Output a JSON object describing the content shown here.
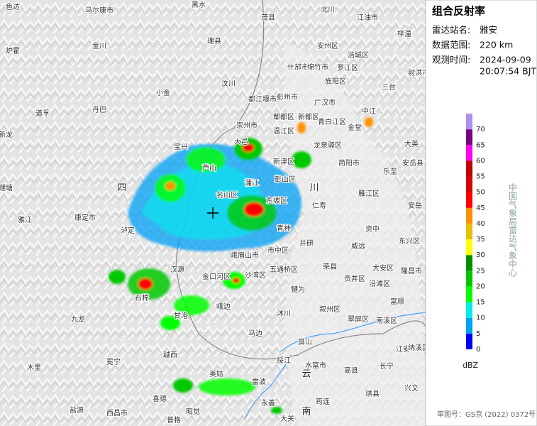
{
  "panel": {
    "title": "组合反射率",
    "station_label": "雷达站名:",
    "station": "雅安",
    "range_label": "数据范围:",
    "range": "220 km",
    "time_label": "观测时间:",
    "date": "2024-09-09",
    "time": "20:07:54 BJT",
    "unit": "dBZ",
    "source": "中国气象局雷达气象中心",
    "approval": "审图号：GS京 (2022) 0372号"
  },
  "legend": {
    "ticks": [
      0,
      5,
      10,
      15,
      20,
      25,
      30,
      35,
      40,
      45,
      50,
      55,
      60,
      65,
      70
    ],
    "clim": [
      0,
      75
    ],
    "colors": [
      "#0000f6",
      "#01a0f6",
      "#00ecec",
      "#01ff00",
      "#00c800",
      "#019000",
      "#ffff00",
      "#e7c000",
      "#ff9000",
      "#ff0000",
      "#d60000",
      "#c00000",
      "#ff00f0",
      "#780084",
      "#ad90f0"
    ]
  },
  "map_labels": [
    "色达",
    "马尔康市",
    "黑水",
    "茂县",
    "北川",
    "江油市",
    "梓潼",
    "炉霍",
    "金川",
    "理县",
    "安州区",
    "涪城区",
    "什邡市",
    "绵竹市",
    "罗江区",
    "旌阳区",
    "射洪市",
    "三台",
    "汶川",
    "小金",
    "丹巴",
    "道孚",
    "新龙",
    "都江堰市",
    "彭州市",
    "广汉市",
    "中江",
    "郫都区",
    "新都区",
    "崇州市",
    "温江区",
    "青白江区",
    "金堂",
    "大邑",
    "宝兴",
    "龙泉驿区",
    "大英",
    "简阳市",
    "乐至",
    "安岳县",
    "芦山",
    "新津区",
    "彭山区",
    "蒲江",
    "四",
    "川",
    "理塘",
    "名山区",
    "东坡区",
    "雁江区",
    "仁寿",
    "安岳",
    "雅江",
    "康定市",
    "泸定",
    "青神",
    "资中",
    "井研",
    "威远",
    "东兴区",
    "市中区",
    "峨眉山市",
    "五通桥区",
    "荣县",
    "汉源",
    "大安区",
    "隆昌市",
    "金口河区",
    "沙湾区",
    "贡井区",
    "沿滩区",
    "犍为",
    "石棉",
    "富顺",
    "峨边",
    "沐川",
    "叙州区",
    "甘洛",
    "九龙",
    "翠屏区",
    "南溪区",
    "马边",
    "屏山",
    "江安",
    "纳溪区",
    "越西",
    "冕宁",
    "绥江",
    "水富市",
    "高县",
    "长宁",
    "木里",
    "美姑",
    "云",
    "雷波",
    "兴文",
    "珙县",
    "喜德",
    "筠连",
    "永善",
    "西昌市",
    "昭觉",
    "盐源",
    "南",
    "大关",
    "普格"
  ]
}
